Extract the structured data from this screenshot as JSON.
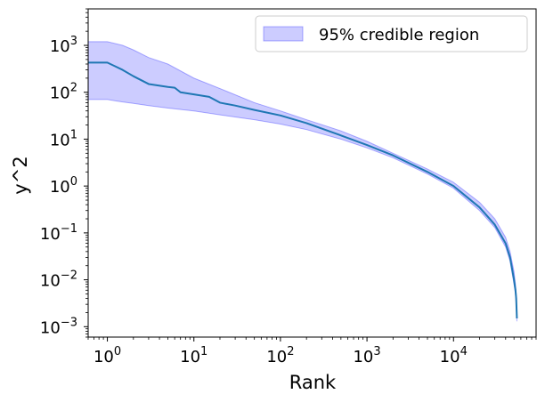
{
  "chart_data": {
    "type": "line",
    "xlabel": "Rank",
    "ylabel": "y^2",
    "x_scale": "log",
    "y_scale": "log",
    "xlim": [
      0.6,
      90000
    ],
    "ylim": [
      0.0006,
      6000
    ],
    "x_ticks": [
      {
        "value": 1,
        "base": "10",
        "exp": "0"
      },
      {
        "value": 10,
        "base": "10",
        "exp": "1"
      },
      {
        "value": 100,
        "base": "10",
        "exp": "2"
      },
      {
        "value": 1000,
        "base": "10",
        "exp": "3"
      },
      {
        "value": 10000,
        "base": "10",
        "exp": "4"
      }
    ],
    "y_ticks": [
      {
        "value": 0.001,
        "base": "10",
        "exp": "−3"
      },
      {
        "value": 0.01,
        "base": "10",
        "exp": "−2"
      },
      {
        "value": 0.1,
        "base": "10",
        "exp": "−1"
      },
      {
        "value": 1,
        "base": "10",
        "exp": "0"
      },
      {
        "value": 10,
        "base": "10",
        "exp": "1"
      },
      {
        "value": 100,
        "base": "10",
        "exp": "2"
      },
      {
        "value": 1000,
        "base": "10",
        "exp": "3"
      }
    ],
    "series": [
      {
        "type": "line",
        "color": "#1f77b4",
        "x": [
          0.6,
          1,
          1.5,
          2,
          3,
          5,
          6,
          7,
          10,
          15,
          20,
          30,
          50,
          100,
          200,
          500,
          1000,
          2000,
          5000,
          10000,
          20000,
          30000,
          40000,
          45000,
          50000,
          52000,
          53000,
          54000
        ],
        "y": [
          430,
          430,
          300,
          220,
          150,
          130,
          125,
          100,
          90,
          80,
          60,
          52,
          42,
          32,
          22,
          12,
          7.5,
          4.5,
          2.0,
          1.0,
          0.35,
          0.15,
          0.06,
          0.03,
          0.01,
          0.006,
          0.004,
          0.0015
        ]
      }
    ],
    "band": {
      "name": "95% credible region",
      "color": "#0000ff",
      "opacity": 0.2,
      "x": [
        0.6,
        1,
        1.5,
        2,
        3,
        5,
        10,
        20,
        50,
        100,
        200,
        500,
        1000,
        2000,
        5000,
        10000,
        20000,
        30000,
        40000,
        45000,
        50000,
        52000,
        53000,
        54000
      ],
      "upper": [
        1200,
        1200,
        1000,
        800,
        550,
        400,
        200,
        120,
        60,
        40,
        26,
        15,
        9,
        5,
        2.3,
        1.2,
        0.45,
        0.2,
        0.08,
        0.04,
        0.015,
        0.008,
        0.005,
        0.0018
      ],
      "lower": [
        70,
        70,
        62,
        58,
        52,
        46,
        40,
        33,
        26,
        21,
        16,
        10,
        6.5,
        4.0,
        1.8,
        0.9,
        0.3,
        0.13,
        0.05,
        0.025,
        0.008,
        0.005,
        0.003,
        0.0013
      ]
    },
    "legend": {
      "position": "top-right",
      "entries": [
        "95% credible region"
      ]
    },
    "grid": false
  }
}
